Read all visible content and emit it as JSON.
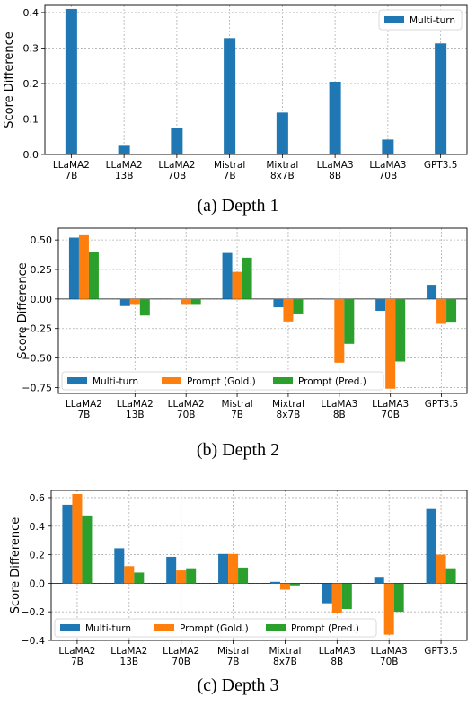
{
  "colors": {
    "multi_turn": "#1f77b4",
    "prompt_gold": "#ff7f0e",
    "prompt_pred": "#2ca02c"
  },
  "chart_data": [
    {
      "type": "bar",
      "caption": "(a) Depth 1",
      "ylabel": "Score Difference",
      "xlabel": "",
      "categories": [
        "LLaMA2\n7B",
        "LLaMA2\n13B",
        "LLaMA2\n70B",
        "Mistral\n7B",
        "Mixtral\n8x7B",
        "LLaMA3\n8B",
        "LLaMA3\n70B",
        "GPT3.5"
      ],
      "ylim": [
        0,
        0.42
      ],
      "yticks": [
        0.0,
        0.1,
        0.2,
        0.3,
        0.4
      ],
      "ytick_labels": [
        "0.0",
        "0.1",
        "0.2",
        "0.3",
        "0.4"
      ],
      "grid": true,
      "legend_position": "top-right",
      "series": [
        {
          "name": "Multi-turn",
          "values": [
            0.41,
            0.027,
            0.075,
            0.328,
            0.118,
            0.205,
            0.042,
            0.313
          ]
        }
      ]
    },
    {
      "type": "bar",
      "caption": "(b) Depth 2",
      "ylabel": "Score Difference",
      "xlabel": "",
      "categories": [
        "LLaMA2\n7B",
        "LLaMA2\n13B",
        "LLaMA2\n70B",
        "Mistral\n7B",
        "Mixtral\n8x7B",
        "LLaMA3\n8B",
        "LLaMA3\n70B",
        "GPT3.5"
      ],
      "ylim": [
        -0.8,
        0.6
      ],
      "yticks": [
        -0.75,
        -0.5,
        -0.25,
        0.0,
        0.25,
        0.5
      ],
      "ytick_labels": [
        "−0.75",
        "−0.50",
        "−0.25",
        "0.00",
        "0.25",
        "0.50"
      ],
      "grid": true,
      "legend_position": "bottom-left",
      "series": [
        {
          "name": "Multi-turn",
          "values": [
            0.52,
            -0.06,
            0.0,
            0.39,
            -0.07,
            -0.005,
            -0.1,
            0.12
          ]
        },
        {
          "name": "Prompt (Gold.)",
          "values": [
            0.54,
            -0.05,
            -0.05,
            0.23,
            -0.19,
            -0.54,
            -0.76,
            -0.21
          ]
        },
        {
          "name": "Prompt (Pred.)",
          "values": [
            0.4,
            -0.14,
            -0.05,
            0.35,
            -0.13,
            -0.38,
            -0.53,
            -0.2
          ]
        }
      ]
    },
    {
      "type": "bar",
      "caption": "(c) Depth 3",
      "ylabel": "Score Difference",
      "xlabel": "",
      "categories": [
        "LLaMA2\n7B",
        "LLaMA2\n13B",
        "LLaMA2\n70B",
        "Mistral\n7B",
        "Mixtral\n8x7B",
        "LLaMA3\n8B",
        "LLaMA3\n70B",
        "GPT3.5"
      ],
      "ylim": [
        -0.4,
        0.65
      ],
      "yticks": [
        -0.4,
        -0.2,
        0.0,
        0.2,
        0.4,
        0.6
      ],
      "ytick_labels": [
        "−0.4",
        "−0.2",
        "0.0",
        "0.2",
        "0.4",
        "0.6"
      ],
      "grid": true,
      "legend_position": "bottom-left",
      "series": [
        {
          "name": "Multi-turn",
          "values": [
            0.55,
            0.245,
            0.185,
            0.205,
            0.01,
            -0.14,
            0.045,
            0.52
          ]
        },
        {
          "name": "Prompt (Gold.)",
          "values": [
            0.625,
            0.12,
            0.09,
            0.205,
            -0.045,
            -0.21,
            -0.36,
            0.2
          ]
        },
        {
          "name": "Prompt (Pred.)",
          "values": [
            0.475,
            0.075,
            0.105,
            0.11,
            -0.015,
            -0.18,
            -0.2,
            0.105
          ]
        }
      ]
    }
  ]
}
